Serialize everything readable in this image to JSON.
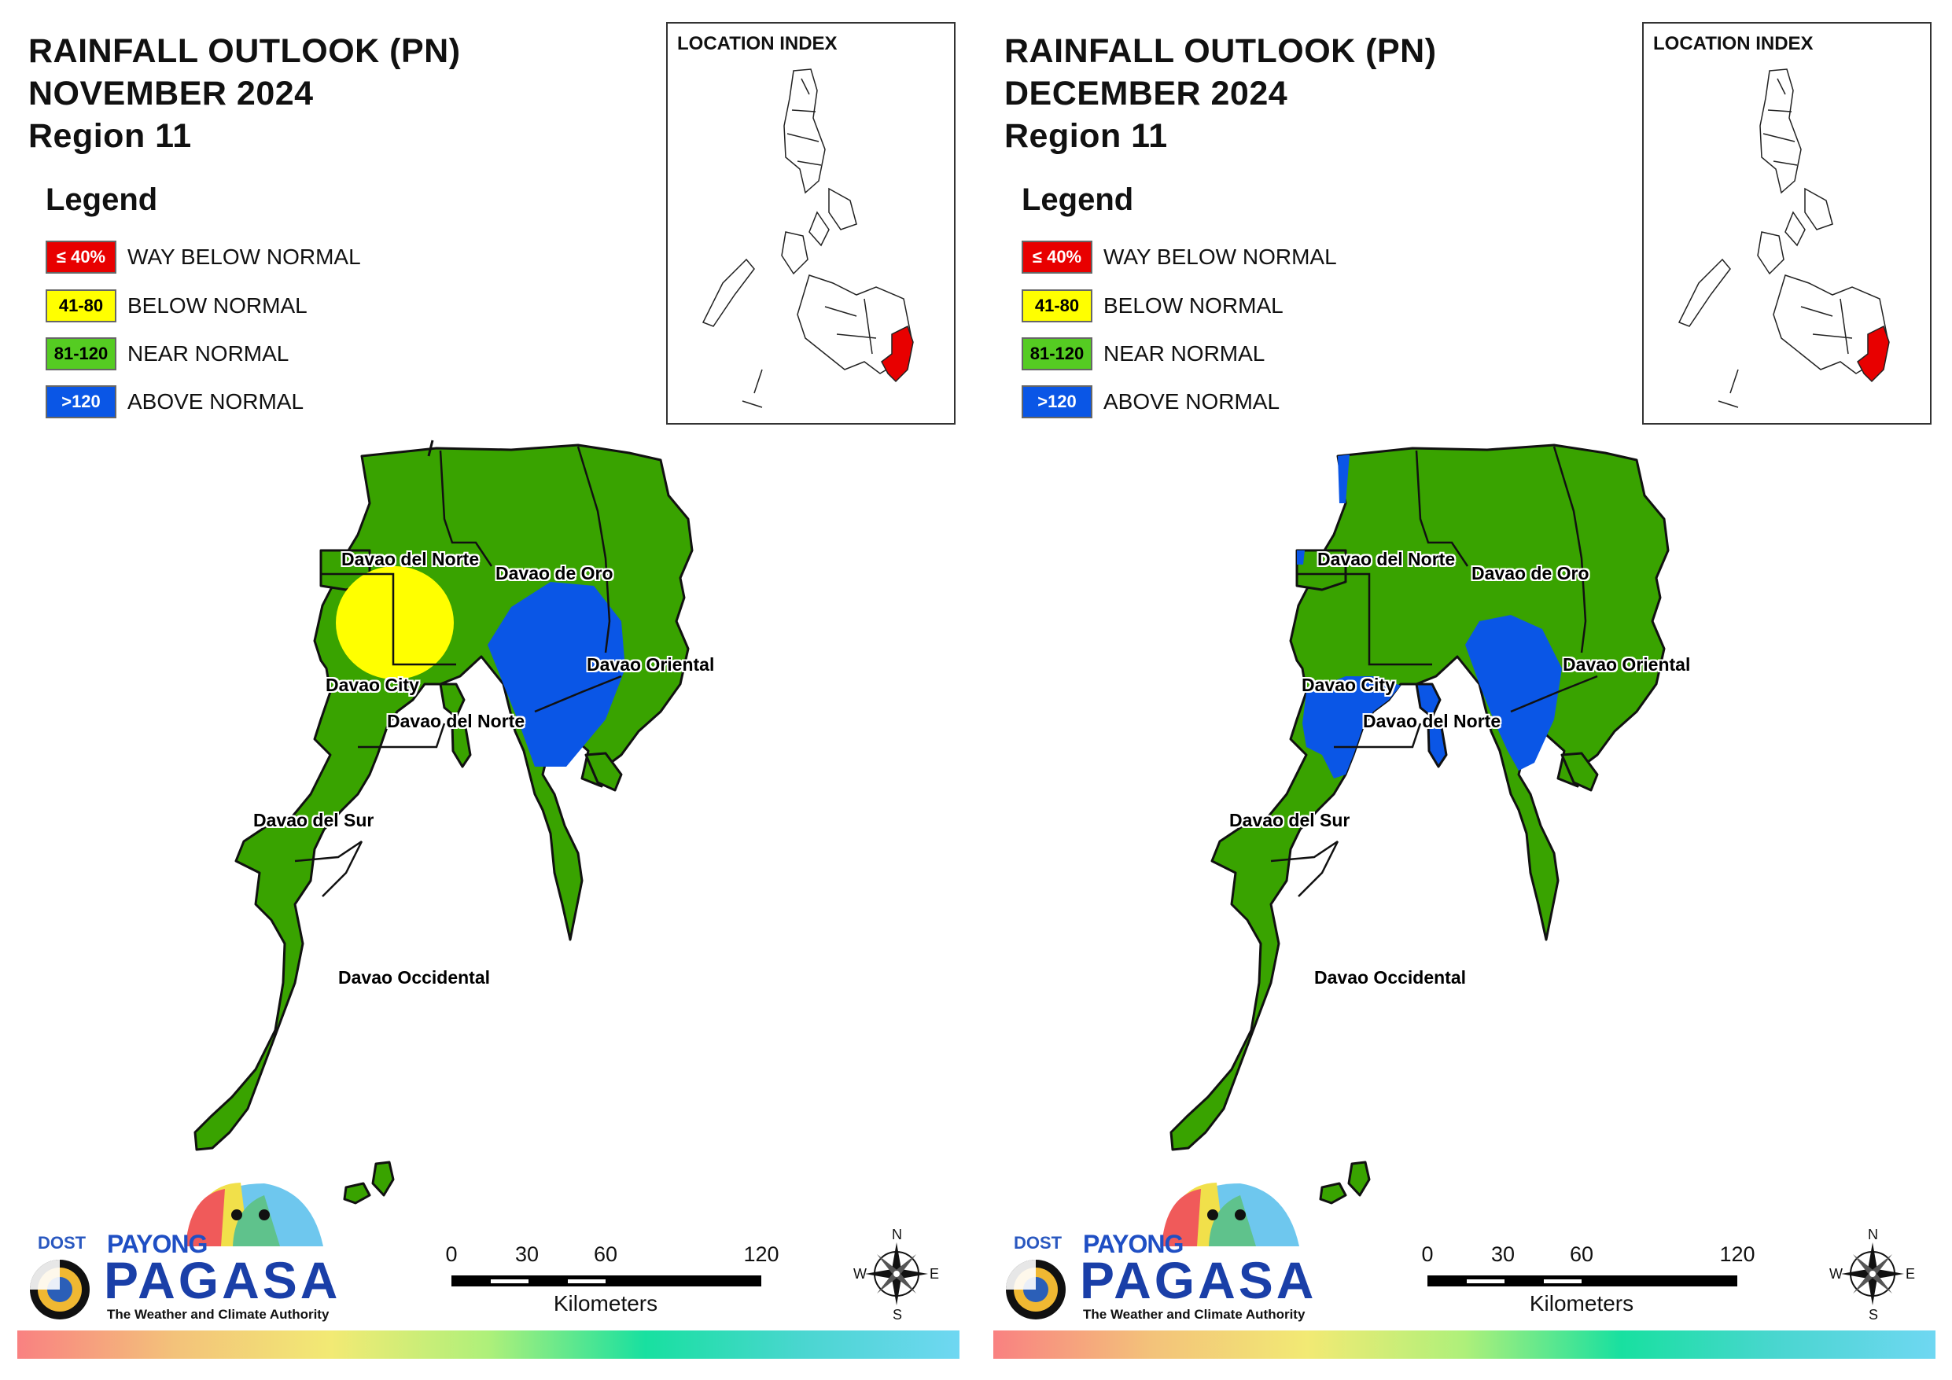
{
  "panels": [
    {
      "title_line1": "RAINFALL OUTLOOK (PN)",
      "title_line2": "NOVEMBER 2024",
      "title_line3": "Region 11",
      "legend_title": "Legend",
      "legend": [
        {
          "code": "≤ 40%",
          "label": "WAY BELOW NORMAL",
          "color": "#e80000"
        },
        {
          "code": "41-80",
          "label": "BELOW NORMAL",
          "color": "#ffff00"
        },
        {
          "code": "81-120",
          "label": "NEAR NORMAL",
          "color": "#55cc22"
        },
        {
          "code": ">120",
          "label": "ABOVE NORMAL",
          "color": "#0a56e6"
        }
      ],
      "location_index": "LOCATION INDEX",
      "provinces": [
        "Davao del Norte",
        "Davao de Oro",
        "Davao Oriental",
        "Davao City",
        "Davao del Norte",
        "Davao del Sur",
        "Davao Occidental"
      ],
      "scale_ticks": [
        "0",
        "30",
        "60",
        "120"
      ],
      "scale_unit": "Kilometers",
      "compass": {
        "n": "N",
        "e": "E",
        "s": "S",
        "w": "W"
      },
      "logo": {
        "dost": "DOST",
        "payong": "PAYONG",
        "pagasa": "PAGASA",
        "tagline": "The Weather and Climate Authority"
      }
    },
    {
      "title_line1": "RAINFALL OUTLOOK (PN)",
      "title_line2": "DECEMBER 2024",
      "title_line3": "Region 11",
      "legend_title": "Legend",
      "legend": [
        {
          "code": "≤ 40%",
          "label": "WAY BELOW NORMAL",
          "color": "#e80000"
        },
        {
          "code": "41-80",
          "label": "BELOW NORMAL",
          "color": "#ffff00"
        },
        {
          "code": "81-120",
          "label": "NEAR NORMAL",
          "color": "#55cc22"
        },
        {
          "code": ">120",
          "label": "ABOVE NORMAL",
          "color": "#0a56e6"
        }
      ],
      "location_index": "LOCATION INDEX",
      "provinces": [
        "Davao del Norte",
        "Davao de Oro",
        "Davao Oriental",
        "Davao City",
        "Davao del Norte",
        "Davao del Sur",
        "Davao Occidental"
      ],
      "scale_ticks": [
        "0",
        "30",
        "60",
        "120"
      ],
      "scale_unit": "Kilometers",
      "compass": {
        "n": "N",
        "e": "E",
        "s": "S",
        "w": "W"
      },
      "logo": {
        "dost": "DOST",
        "payong": "PAYONG",
        "pagasa": "PAGASA",
        "tagline": "The Weather and Climate Authority"
      }
    }
  ],
  "colors": {
    "land": "#39a300",
    "below": "#ffff00",
    "above": "#0a56e6",
    "region_highlight": "#e80000"
  }
}
